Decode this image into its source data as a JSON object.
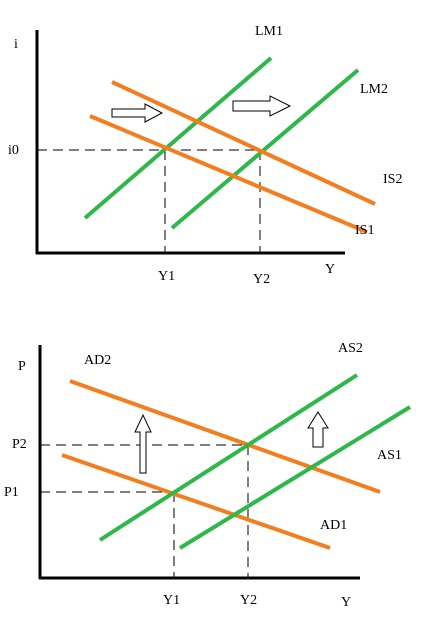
{
  "top": {
    "y_axis_label": "i",
    "x_axis_label": "Y",
    "rate_label": "i0",
    "output_labels": [
      "Y1",
      "Y2"
    ],
    "curves": {
      "lm1": "LM1",
      "lm2": "LM2",
      "is1": "IS1",
      "is2": "IS2"
    }
  },
  "bottom": {
    "y_axis_label": "P",
    "x_axis_label": "Y",
    "price_labels": [
      "P1",
      "P2"
    ],
    "output_labels": [
      "Y1",
      "Y2"
    ],
    "curves": {
      "ad1": "AD1",
      "ad2": "AD2",
      "as1": "AS1",
      "as2": "AS2"
    }
  }
}
